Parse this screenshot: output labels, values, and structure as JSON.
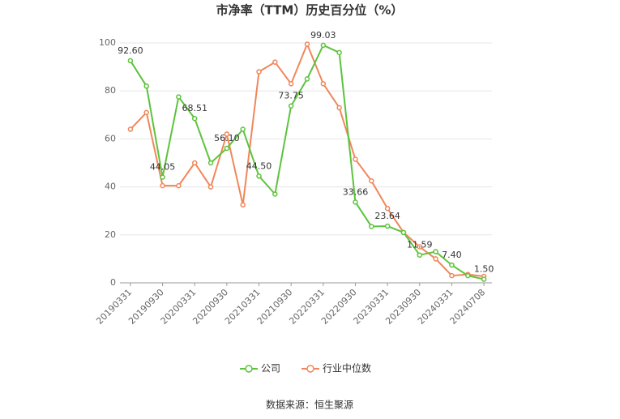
{
  "chart_data": {
    "type": "line",
    "title": "市净率（TTM）历史百分位（%）",
    "categories": [
      "20190331",
      null,
      "20190930",
      null,
      "20200331",
      null,
      "20200930",
      null,
      "20210331",
      null,
      "20210930",
      null,
      "20220331",
      null,
      "20220930",
      null,
      "20230331",
      null,
      "20230930",
      null,
      "20240331",
      null,
      "20240708"
    ],
    "series": [
      {
        "name": "公司",
        "color": "#5cc33c",
        "values": [
          92.6,
          82,
          44.05,
          77.5,
          68.51,
          50,
          56.1,
          64,
          44.5,
          37,
          73.75,
          85,
          99.03,
          96,
          33.66,
          23.5,
          23.64,
          21,
          11.59,
          13,
          7.4,
          3,
          1.5
        ],
        "value_labels": [
          "92.60",
          null,
          "44.05",
          null,
          "68.51",
          null,
          "56.10",
          null,
          "44.50",
          null,
          "73.75",
          null,
          "99.03",
          null,
          "33.66",
          null,
          "23.64",
          null,
          "11.59",
          null,
          "7.40",
          null,
          "1.50"
        ]
      },
      {
        "name": "行业中位数",
        "color": "#f0875a",
        "values": [
          64,
          71,
          40.5,
          40.5,
          50,
          40,
          62,
          32.5,
          88,
          92,
          83,
          99.5,
          83,
          73,
          51.5,
          42.5,
          31,
          21,
          15,
          10,
          3,
          3.5,
          2.7
        ]
      }
    ],
    "ylim": [
      0,
      100
    ],
    "yticks": [
      0,
      20,
      40,
      60,
      80,
      100
    ],
    "grid": true,
    "legend": "bottom",
    "source": "数据来源：恒生聚源"
  }
}
